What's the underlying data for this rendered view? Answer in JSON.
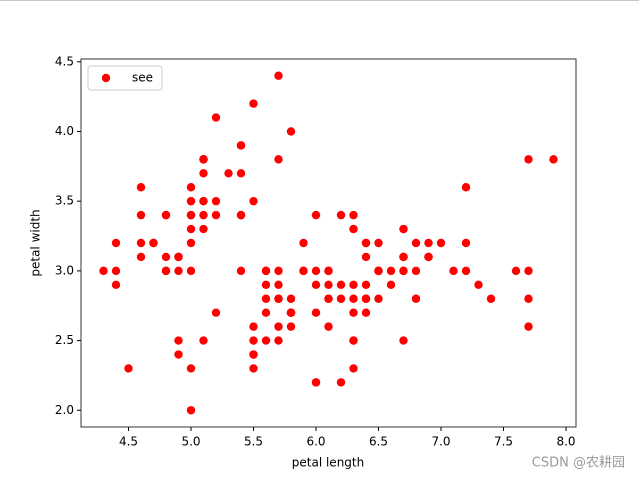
{
  "chart_data": {
    "type": "scatter",
    "xlabel": "petal length",
    "ylabel": "petal width",
    "legend": "upper left",
    "watermark": "CSDN @农耕园",
    "xlim": [
      4.12,
      8.08
    ],
    "ylim": [
      1.88,
      4.52
    ],
    "xticks": [
      4.5,
      {
        "value": 5,
        "label": "5.0"
      },
      5.5,
      {
        "value": 6,
        "label": "6.0"
      },
      6.5,
      {
        "value": 7,
        "label": "7.0"
      },
      7.5,
      {
        "value": 8,
        "label": "8.0"
      }
    ],
    "yticks": [
      {
        "value": 2,
        "label": "2.0"
      },
      2.5,
      {
        "value": 3,
        "label": "3.0"
      },
      3.5,
      {
        "value": 4,
        "label": "4.0"
      },
      4.5
    ],
    "series": [
      {
        "name": "see",
        "color": "#ff0000",
        "x": [
          5.1,
          4.9,
          4.7,
          4.6,
          5.0,
          5.4,
          4.6,
          5.0,
          4.4,
          4.9,
          5.4,
          4.8,
          4.8,
          4.3,
          5.8,
          5.7,
          5.4,
          5.1,
          5.7,
          5.1,
          5.4,
          5.1,
          4.6,
          5.1,
          4.8,
          5.0,
          5.0,
          5.2,
          5.2,
          4.7,
          4.8,
          5.4,
          5.2,
          5.5,
          4.9,
          5.0,
          5.5,
          4.9,
          4.4,
          5.1,
          5.0,
          4.5,
          4.4,
          5.0,
          5.1,
          4.8,
          5.1,
          4.6,
          5.3,
          5.0,
          7.0,
          6.4,
          6.9,
          5.5,
          6.5,
          5.7,
          6.3,
          4.9,
          6.6,
          5.2,
          5.0,
          5.9,
          6.0,
          6.1,
          5.6,
          6.7,
          5.6,
          5.8,
          6.2,
          5.6,
          5.9,
          6.1,
          6.3,
          6.1,
          6.4,
          6.6,
          6.8,
          6.7,
          6.0,
          5.7,
          5.5,
          5.5,
          5.8,
          6.0,
          5.4,
          6.0,
          6.7,
          6.3,
          5.6,
          5.5,
          5.5,
          6.1,
          5.8,
          5.0,
          5.6,
          5.7,
          5.7,
          6.2,
          5.1,
          5.7,
          6.3,
          5.8,
          7.1,
          6.3,
          6.5,
          7.6,
          4.9,
          7.3,
          6.7,
          7.2,
          6.5,
          6.4,
          6.8,
          5.7,
          5.8,
          6.4,
          6.5,
          7.7,
          7.7,
          6.0,
          6.9,
          5.6,
          7.7,
          6.3,
          6.7,
          7.2,
          6.2,
          6.1,
          6.4,
          7.2,
          7.4,
          7.9,
          6.4,
          6.3,
          6.1,
          7.7,
          6.3,
          6.4,
          6.0,
          6.9,
          6.7,
          6.9,
          5.8,
          6.8,
          6.7,
          6.7,
          6.3,
          6.5,
          6.2,
          5.9
        ],
        "values": [
          3.5,
          3.0,
          3.2,
          3.1,
          3.6,
          3.9,
          3.4,
          3.4,
          2.9,
          3.1,
          3.7,
          3.4,
          3.0,
          3.0,
          4.0,
          4.4,
          3.9,
          3.5,
          3.8,
          3.8,
          3.4,
          3.7,
          3.6,
          3.3,
          3.4,
          3.0,
          3.4,
          3.5,
          3.4,
          3.2,
          3.1,
          3.4,
          4.1,
          4.2,
          3.1,
          3.2,
          3.5,
          3.1,
          3.0,
          3.4,
          3.5,
          2.3,
          3.2,
          3.5,
          3.8,
          3.0,
          3.8,
          3.2,
          3.7,
          3.3,
          3.2,
          3.2,
          3.1,
          2.3,
          2.8,
          2.8,
          3.3,
          2.4,
          2.9,
          2.7,
          2.0,
          3.0,
          2.2,
          2.9,
          2.9,
          3.1,
          3.0,
          2.7,
          2.2,
          2.5,
          3.2,
          2.8,
          2.5,
          2.8,
          2.9,
          3.0,
          2.8,
          3.0,
          2.9,
          2.6,
          2.4,
          2.4,
          2.7,
          2.7,
          3.0,
          3.4,
          3.1,
          2.3,
          3.0,
          2.5,
          2.6,
          3.0,
          2.6,
          2.3,
          2.7,
          3.0,
          2.9,
          2.9,
          2.5,
          2.8,
          3.3,
          2.7,
          3.0,
          2.9,
          3.0,
          3.0,
          2.5,
          2.9,
          2.5,
          3.6,
          3.2,
          2.7,
          3.0,
          2.5,
          2.8,
          3.2,
          3.0,
          3.8,
          2.6,
          2.2,
          3.2,
          2.8,
          2.8,
          2.7,
          3.3,
          3.2,
          2.8,
          3.0,
          2.8,
          3.0,
          2.8,
          3.8,
          2.8,
          2.8,
          2.6,
          3.0,
          3.4,
          3.1,
          3.0,
          3.1,
          3.1,
          3.1,
          2.7,
          3.2,
          3.3,
          3.0,
          2.5,
          3.0,
          3.4,
          3.0
        ]
      }
    ]
  }
}
